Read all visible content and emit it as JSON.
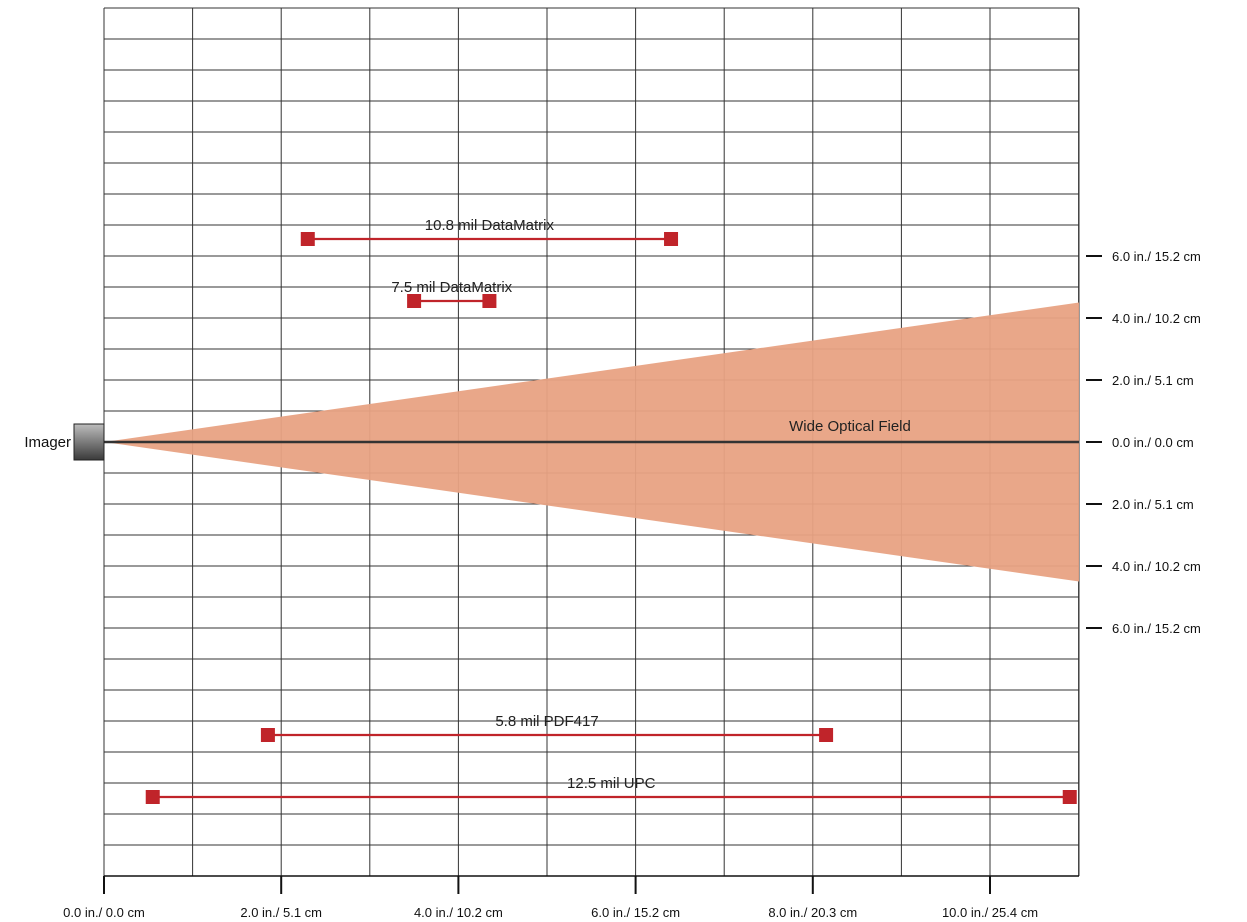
{
  "diagram": {
    "imager_label": "Imager",
    "field_label": "Wide Optical Field",
    "x_axis": {
      "ticks": [
        {
          "value": 0,
          "label": "0.0 in./ 0.0 cm"
        },
        {
          "value": 2,
          "label": "2.0 in./ 5.1 cm"
        },
        {
          "value": 4,
          "label": "4.0 in./ 10.2 cm"
        },
        {
          "value": 6,
          "label": "6.0 in./ 15.2 cm"
        },
        {
          "value": 8,
          "label": "8.0 in./ 20.3 cm"
        },
        {
          "value": 10,
          "label": "10.0 in./ 25.4 cm"
        }
      ]
    },
    "y_axis": {
      "ticks": [
        {
          "value": 6,
          "label": "6.0 in./ 15.2 cm"
        },
        {
          "value": 4,
          "label": "4.0 in./ 10.2 cm"
        },
        {
          "value": 2,
          "label": "2.0 in./ 5.1 cm"
        },
        {
          "value": 0,
          "label": "0.0 in./ 0.0 cm"
        },
        {
          "value": -2,
          "label": "2.0 in./ 5.1 cm"
        },
        {
          "value": -4,
          "label": "4.0 in./ 10.2 cm"
        },
        {
          "value": -6,
          "label": "6.0 in./ 15.2 cm"
        }
      ]
    },
    "ranges": [
      {
        "label": "10.8 mil DataMatrix",
        "start_in": 2.3,
        "end_in": 6.4
      },
      {
        "label": "7.5 mil DataMatrix",
        "start_in": 3.5,
        "end_in": 4.35
      },
      {
        "label": "5.8 mil PDF417",
        "start_in": 1.85,
        "end_in": 8.15
      },
      {
        "label": "12.5 mil UPC",
        "start_in": 0.55,
        "end_in": 10.9
      }
    ],
    "field_half_width_at_11in": 4.5,
    "colors": {
      "field": "#e8a283",
      "range_line": "#c0242a",
      "grid": "#333333"
    }
  }
}
